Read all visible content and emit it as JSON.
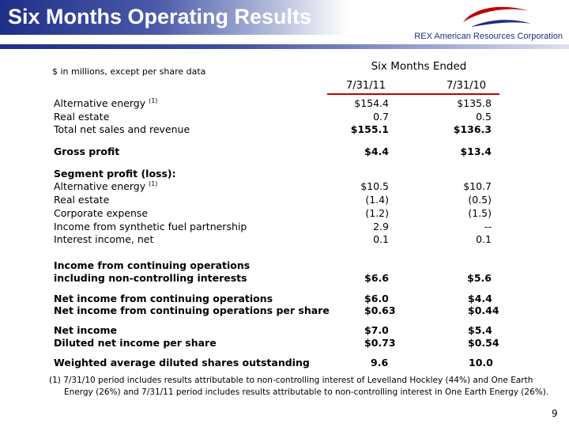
{
  "header": {
    "title": "Six Months Operating Results",
    "company": "REX American Resources Corporation"
  },
  "colors": {
    "navy": "#1f2f88",
    "red": "#c00000"
  },
  "table": {
    "units_note": "$ in millions, except per share data",
    "period_header": "Six Months Ended",
    "col1": "7/31/11",
    "col2": "7/31/10",
    "footnote_marker": "(1)",
    "rows": {
      "alt_energy": {
        "label": "Alternative energy",
        "v1": "$154.4",
        "v2": "$135.8"
      },
      "real_estate": {
        "label": "Real estate",
        "v1": "0.7",
        "v2": "0.5"
      },
      "total_sales": {
        "label": "Total net sales and revenue",
        "v1": "$155.1",
        "v2": "$136.3"
      },
      "gross_profit": {
        "label": "Gross profit",
        "v1": "$4.4",
        "v2": "$13.4"
      },
      "segment_heading": {
        "label": "Segment profit (loss):"
      },
      "seg_alt_energy": {
        "label": "Alternative energy",
        "v1": "$10.5",
        "v2": "$10.7"
      },
      "seg_real_estate": {
        "label": "Real estate",
        "v1": "(1.4)",
        "v2": "(0.5)"
      },
      "seg_corporate": {
        "label": "Corporate expense",
        "v1": "(1.2)",
        "v2": "(1.5)"
      },
      "seg_synthetic": {
        "label": "Income from synthetic fuel partnership",
        "v1": "2.9",
        "v2": "--"
      },
      "seg_interest": {
        "label": "Interest income, net",
        "v1": "0.1",
        "v2": "0.1"
      },
      "income_cont_1": {
        "label": "Income from continuing operations"
      },
      "income_cont_2": {
        "label": "including non-controlling interests",
        "v1": "$6.6",
        "v2": "$5.6"
      },
      "net_cont": {
        "label": "Net income from continuing operations",
        "v1": "$6.0",
        "v2": "$4.4"
      },
      "net_cont_share": {
        "label": "Net income from continuing operations per share",
        "v1": "$0.63",
        "v2": "$0.44"
      },
      "net_income": {
        "label": "Net income",
        "v1": "$7.0",
        "v2": "$5.4"
      },
      "diluted": {
        "label": "Diluted net income per share",
        "v1": "$0.73",
        "v2": "$0.54"
      },
      "shares": {
        "label": "Weighted average diluted shares outstanding",
        "v1": "9.6",
        "v2": "10.0"
      }
    }
  },
  "footnote": {
    "line1": "(1) 7/31/10 period includes results attributable to non-controlling interest of Levelland Hockley (44%) and One Earth",
    "line2": "Energy (26%) and 7/31/11 period includes results attributable to non-controlling interest in One Earth Energy (26%)."
  },
  "page_number": "9"
}
